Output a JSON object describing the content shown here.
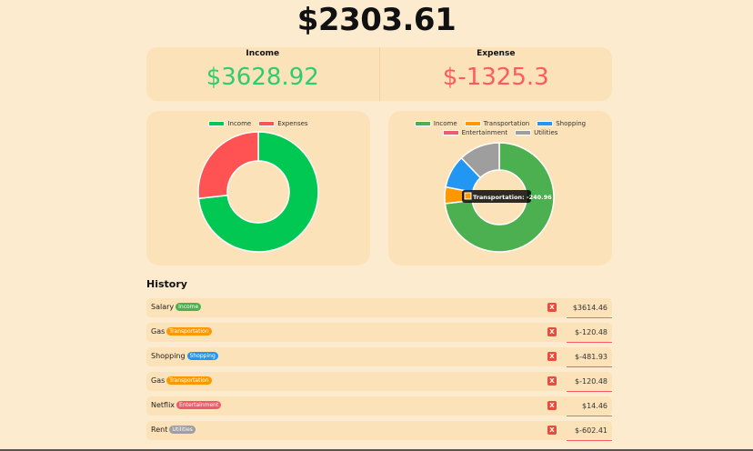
{
  "balance": "$2303.61",
  "summary": {
    "income_label": "Income",
    "income_value": "$3628.92",
    "expense_label": "Expense",
    "expense_value": "$-1325.3"
  },
  "chart_data": [
    {
      "type": "pie",
      "subtype": "doughnut",
      "legend": "top",
      "categories": [
        "Income",
        "Expenses"
      ],
      "values": [
        3628.92,
        1325.3
      ],
      "colors": [
        "#00c853",
        "#ff5252"
      ]
    },
    {
      "type": "pie",
      "subtype": "doughnut",
      "legend": "top",
      "categories": [
        "Income",
        "Transportation",
        "Shopping",
        "Entertainment",
        "Utilities"
      ],
      "values": [
        3614.46,
        240.96,
        481.93,
        0.01,
        602.41
      ],
      "colors": [
        "#4caf50",
        "#ff9800",
        "#2196f3",
        "#ef5b6a",
        "#9e9e9e"
      ],
      "tooltip": {
        "label": "Transportation: -240.96",
        "color": "#ff9800"
      }
    }
  ],
  "history": {
    "title": "History",
    "delete_label": "X",
    "items": [
      {
        "name": "Salary",
        "tag": "Income",
        "tag_color": "#4caf50",
        "amount": "$3614.46",
        "bar_color": "#2ecc71"
      },
      {
        "name": "Gas",
        "tag": "Transportation",
        "tag_color": "#ff9800",
        "amount": "$-120.48",
        "bar_color": "#ff5a5f"
      },
      {
        "name": "Shopping",
        "tag": "Shopping",
        "tag_color": "#2196f3",
        "amount": "$-481.93",
        "bar_color": "#ff5a5f"
      },
      {
        "name": "Gas",
        "tag": "Transportation",
        "tag_color": "#ff9800",
        "amount": "$-120.48",
        "bar_color": "#ff5a5f"
      },
      {
        "name": "Netflix",
        "tag": "Entertainment",
        "tag_color": "#ef5b6a",
        "amount": "$14.46",
        "bar_color": "#2ecc71"
      },
      {
        "name": "Rent",
        "tag": "Utilities",
        "tag_color": "#9e9e9e",
        "amount": "$-602.41",
        "bar_color": "#ff5a5f"
      }
    ]
  }
}
